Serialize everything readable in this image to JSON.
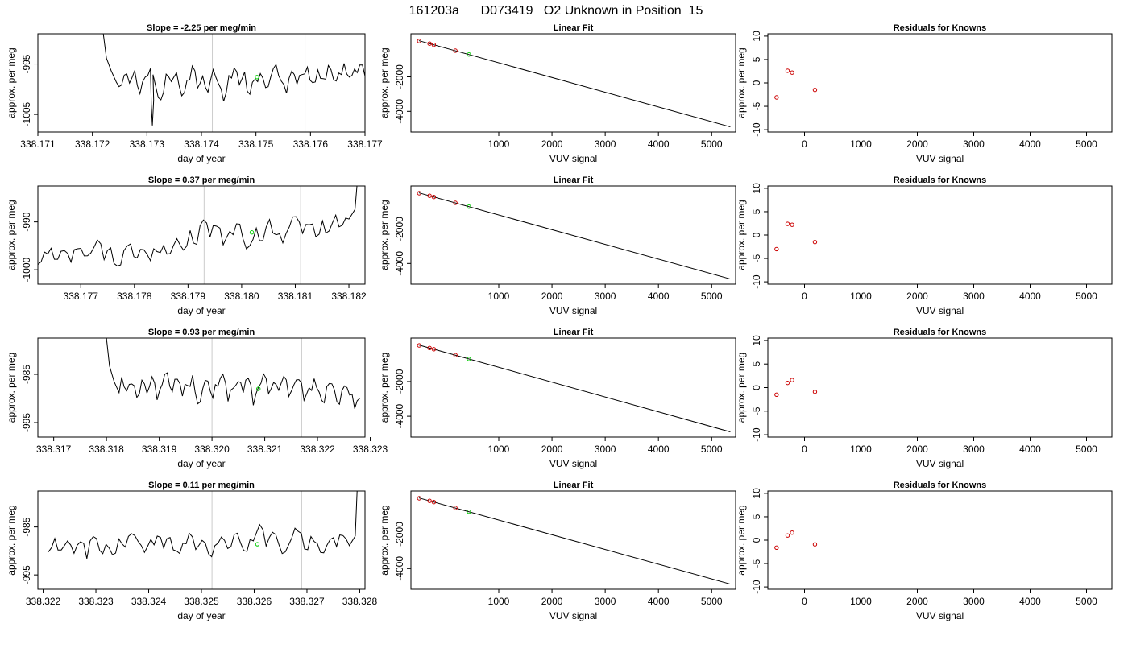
{
  "figure_title": "161203a      D073419   O2 Unknown in Position  15",
  "colors": {
    "trace": "#000000",
    "known_point": "#cc0000",
    "unknown_point": "#00cc00",
    "marker_line": "#cccccc",
    "background": "#ffffff"
  },
  "chart_data": [
    {
      "id": "r1-trace",
      "row": 0,
      "col": 0,
      "type": "line",
      "title": "Slope =  -2.25  per meg/min",
      "xlabel": "day of year",
      "ylabel": "approx. per meg",
      "xlim": [
        338.171,
        338.177
      ],
      "ylim": [
        -1008.5,
        -989
      ],
      "xticks": [
        338.171,
        338.172,
        338.173,
        338.174,
        338.175,
        338.176,
        338.177
      ],
      "xtick_labels": [
        "338.171",
        "338.172",
        "338.173",
        "338.174",
        "338.175",
        "338.176",
        "338.177"
      ],
      "yticks": [
        -995,
        -1005
      ],
      "ytick_labels": [
        "-995",
        "-1005"
      ],
      "vlines": [
        338.1742,
        338.1759
      ],
      "trace": {
        "x_start": 338.1722,
        "x_end": 338.177,
        "start_y": -989,
        "level": -997.8,
        "spike_y": -1007.2,
        "spike_x": 338.1731,
        "samples": [
          -999.5,
          -997.2,
          -998.8,
          -996.3,
          -1000.9,
          -997.6,
          -995.9,
          -999.4,
          -1002.1,
          -997.0,
          -998.5,
          -996.7,
          -1001.3,
          -998.2,
          -995.4,
          -999.8,
          -997.4,
          -1000.6,
          -996.1,
          -998.9,
          -1002.4,
          -997.3,
          -995.8,
          -999.1,
          -996.6,
          -1001.0,
          -998.0,
          -996.9,
          -999.7,
          -997.5,
          -995.1,
          -998.4,
          -1000.8,
          -996.4,
          -999.0,
          -997.1,
          -995.6,
          -998.7,
          -996.2,
          -997.9,
          -995.3,
          -998.1,
          -996.8,
          -994.9,
          -997.6,
          -996.0,
          -995.2,
          -997.4
        ]
      },
      "unknown_point": {
        "x": 338.17502,
        "y": -997.6
      }
    },
    {
      "id": "r1-fit",
      "row": 0,
      "col": 1,
      "type": "scatter",
      "title": "Linear Fit",
      "xlabel": "VUV signal",
      "ylabel": "approx. per meg",
      "xlim": [
        -650,
        5450
      ],
      "ylim": [
        -5200,
        500
      ],
      "xticks": [
        1000,
        2000,
        3000,
        4000,
        5000
      ],
      "xtick_labels": [
        "1000",
        "2000",
        "3000",
        "4000",
        "5000"
      ],
      "yticks": [
        -2000,
        -4000
      ],
      "ytick_labels": [
        "-2000",
        "-4000"
      ],
      "fit_line": {
        "x": [
          -500,
          5350
        ],
        "y": [
          100,
          -4900
        ]
      },
      "knowns": [
        {
          "x": -495,
          "y": 80
        },
        {
          "x": -300,
          "y": -70
        },
        {
          "x": -220,
          "y": -140
        },
        {
          "x": 185,
          "y": -480
        }
      ],
      "unknown": {
        "x": 440,
        "y": -700
      }
    },
    {
      "id": "r1-resid",
      "row": 0,
      "col": 2,
      "type": "scatter",
      "title": "Residuals for Knowns",
      "xlabel": "VUV signal",
      "ylabel": "approx. per meg",
      "xlim": [
        -650,
        5450
      ],
      "ylim": [
        -10.5,
        10.5
      ],
      "xticks": [
        0,
        1000,
        2000,
        3000,
        4000,
        5000
      ],
      "xtick_labels": [
        "0",
        "1000",
        "2000",
        "3000",
        "4000",
        "5000"
      ],
      "yticks": [
        10,
        5,
        0,
        -5,
        -10
      ],
      "ytick_labels": [
        "10",
        "5",
        "0",
        "-5",
        "-10"
      ],
      "points": [
        {
          "x": -495,
          "y": -3.1
        },
        {
          "x": -300,
          "y": 2.6
        },
        {
          "x": -220,
          "y": 2.2
        },
        {
          "x": 185,
          "y": -1.5
        }
      ]
    },
    {
      "id": "r2-trace",
      "row": 1,
      "col": 0,
      "type": "line",
      "title": "Slope =  0.37  per meg/min",
      "xlabel": "day of year",
      "ylabel": "approx. per meg",
      "xlim": [
        338.1762,
        338.1823
      ],
      "ylim": [
        -1003,
        -982.5
      ],
      "xticks": [
        338.177,
        338.178,
        338.179,
        338.18,
        338.181,
        338.182
      ],
      "xtick_labels": [
        "338.177",
        "338.178",
        "338.179",
        "338.180",
        "338.181",
        "338.182"
      ],
      "yticks": [
        -990,
        -1000
      ],
      "ytick_labels": [
        "-990",
        "-1000"
      ],
      "vlines": [
        338.1793,
        338.1811
      ],
      "trace": {
        "x_start": 338.1762,
        "x_end": 338.18215,
        "level_start": -997.2,
        "level_end": -991.5,
        "end_y": -982.5,
        "samples": [
          -998.9,
          -996.3,
          -995.5,
          -997.8,
          -996.0,
          -998.4,
          -995.6,
          -997.1,
          -996.5,
          -993.8,
          -997.9,
          -995.4,
          -999.2,
          -996.0,
          -994.6,
          -997.5,
          -995.8,
          -998.1,
          -996.2,
          -994.9,
          -996.6,
          -993.5,
          -995.9,
          -991.8,
          -994.7,
          -989.6,
          -993.2,
          -990.9,
          -994.8,
          -992.0,
          -990.4,
          -993.6,
          -995.0,
          -991.3,
          -993.9,
          -989.5,
          -992.7,
          -994.4,
          -991.0,
          -988.9,
          -992.4,
          -990.6,
          -993.1,
          -989.8,
          -991.9,
          -988.6,
          -990.7,
          -989.4
        ]
      },
      "unknown_point": {
        "x": 338.18019,
        "y": -992.2
      }
    },
    {
      "id": "r2-fit",
      "row": 1,
      "col": 1,
      "type": "scatter",
      "title": "Linear Fit",
      "xlabel": "VUV signal",
      "ylabel": "approx. per meg",
      "xlim": [
        -650,
        5450
      ],
      "ylim": [
        -5200,
        500
      ],
      "xticks": [
        1000,
        2000,
        3000,
        4000,
        5000
      ],
      "xtick_labels": [
        "1000",
        "2000",
        "3000",
        "4000",
        "5000"
      ],
      "yticks": [
        -2000,
        -4000
      ],
      "ytick_labels": [
        "-2000",
        "-4000"
      ],
      "fit_line": {
        "x": [
          -500,
          5350
        ],
        "y": [
          100,
          -4900
        ]
      },
      "knowns": [
        {
          "x": -495,
          "y": 80
        },
        {
          "x": -300,
          "y": -70
        },
        {
          "x": -220,
          "y": -140
        },
        {
          "x": 185,
          "y": -480
        }
      ],
      "unknown": {
        "x": 440,
        "y": -700
      }
    },
    {
      "id": "r2-resid",
      "row": 1,
      "col": 2,
      "type": "scatter",
      "title": "Residuals for Knowns",
      "xlabel": "VUV signal",
      "ylabel": "approx. per meg",
      "xlim": [
        -650,
        5450
      ],
      "ylim": [
        -10.5,
        10.5
      ],
      "xticks": [
        0,
        1000,
        2000,
        3000,
        4000,
        5000
      ],
      "xtick_labels": [
        "0",
        "1000",
        "2000",
        "3000",
        "4000",
        "5000"
      ],
      "yticks": [
        10,
        5,
        0,
        -5,
        -10
      ],
      "ytick_labels": [
        "10",
        "5",
        "0",
        "-5",
        "-10"
      ],
      "points": [
        {
          "x": -495,
          "y": -3.0
        },
        {
          "x": -300,
          "y": 2.4
        },
        {
          "x": -220,
          "y": 2.2
        },
        {
          "x": 185,
          "y": -1.5
        }
      ]
    },
    {
      "id": "r3-trace",
      "row": 2,
      "col": 0,
      "type": "line",
      "title": "Slope =  0.93  per meg/min",
      "xlabel": "day of year",
      "ylabel": "approx. per meg",
      "xlim": [
        338.3167,
        338.3229
      ],
      "ylim": [
        -998,
        -977.5
      ],
      "xticks": [
        338.317,
        338.318,
        338.319,
        338.32,
        338.321,
        338.322,
        338.323
      ],
      "xtick_labels": [
        "338.317",
        "338.318",
        "338.319",
        "338.320",
        "338.321",
        "338.322",
        "338.323"
      ],
      "yticks": [
        -985,
        -995
      ],
      "ytick_labels": [
        "-985",
        "-995"
      ],
      "vlines": [
        338.32,
        338.3217
      ],
      "trace": {
        "x_start": 338.318,
        "x_end": 338.3228,
        "start_y": -977.5,
        "level": -988.0,
        "samples": [
          -985.6,
          -988.4,
          -987.0,
          -989.8,
          -986.2,
          -988.9,
          -985.5,
          -990.3,
          -987.1,
          -984.7,
          -988.6,
          -986.0,
          -989.5,
          -987.3,
          -985.2,
          -991.1,
          -988.0,
          -986.4,
          -989.9,
          -987.5,
          -985.0,
          -990.6,
          -987.9,
          -986.5,
          -988.8,
          -985.8,
          -991.4,
          -987.7,
          -984.9,
          -989.0,
          -986.7,
          -988.3,
          -985.4,
          -989.6,
          -987.2,
          -986.1,
          -990.4,
          -987.8,
          -985.9,
          -988.7,
          -990.9,
          -986.9,
          -988.2,
          -991.2,
          -987.4,
          -989.3,
          -992.1,
          -990.0
        ]
      },
      "unknown_point": {
        "x": 338.32088,
        "y": -988.0
      }
    },
    {
      "id": "r3-fit",
      "row": 2,
      "col": 1,
      "type": "scatter",
      "title": "Linear Fit",
      "xlabel": "VUV signal",
      "ylabel": "approx. per meg",
      "xlim": [
        -650,
        5450
      ],
      "ylim": [
        -5200,
        500
      ],
      "xticks": [
        1000,
        2000,
        3000,
        4000,
        5000
      ],
      "xtick_labels": [
        "1000",
        "2000",
        "3000",
        "4000",
        "5000"
      ],
      "yticks": [
        -2000,
        -4000
      ],
      "ytick_labels": [
        "-2000",
        "-4000"
      ],
      "fit_line": {
        "x": [
          -500,
          5350
        ],
        "y": [
          100,
          -4900
        ]
      },
      "knowns": [
        {
          "x": -495,
          "y": 80
        },
        {
          "x": -300,
          "y": -70
        },
        {
          "x": -220,
          "y": -140
        },
        {
          "x": 185,
          "y": -480
        }
      ],
      "unknown": {
        "x": 440,
        "y": -700
      }
    },
    {
      "id": "r3-resid",
      "row": 2,
      "col": 2,
      "type": "scatter",
      "title": "Residuals for Knowns",
      "xlabel": "VUV signal",
      "ylabel": "approx. per meg",
      "xlim": [
        -650,
        5450
      ],
      "ylim": [
        -10.5,
        10.5
      ],
      "xticks": [
        0,
        1000,
        2000,
        3000,
        4000,
        5000
      ],
      "xtick_labels": [
        "0",
        "1000",
        "2000",
        "3000",
        "4000",
        "5000"
      ],
      "yticks": [
        10,
        5,
        0,
        -5,
        -10
      ],
      "ytick_labels": [
        "10",
        "5",
        "0",
        "-5",
        "-10"
      ],
      "points": [
        {
          "x": -495,
          "y": -1.5
        },
        {
          "x": -300,
          "y": 1.0
        },
        {
          "x": -220,
          "y": 1.6
        },
        {
          "x": 185,
          "y": -0.9
        }
      ]
    },
    {
      "id": "r4-trace",
      "row": 3,
      "col": 0,
      "type": "line",
      "title": "Slope =  0.11  per meg/min",
      "xlabel": "day of year",
      "ylabel": "approx. per meg",
      "xlim": [
        338.3219,
        338.3281
      ],
      "ylim": [
        -998,
        -977.5
      ],
      "xticks": [
        338.322,
        338.323,
        338.324,
        338.325,
        338.326,
        338.327,
        338.328
      ],
      "xtick_labels": [
        "338.322",
        "338.323",
        "338.324",
        "338.325",
        "338.326",
        "338.327",
        "338.328"
      ],
      "yticks": [
        -985,
        -995
      ],
      "ytick_labels": [
        "-985",
        "-995"
      ],
      "vlines": [
        338.3252,
        338.3269
      ],
      "trace": {
        "x_start": 338.3221,
        "x_end": 338.32795,
        "level_start": -989.5,
        "level_end": -988.6,
        "end_y": -977.5,
        "samples": [
          -990.2,
          -987.4,
          -989.8,
          -987.9,
          -990.5,
          -988.1,
          -991.6,
          -987.0,
          -989.9,
          -988.6,
          -990.8,
          -987.5,
          -989.2,
          -986.4,
          -988.0,
          -990.3,
          -987.6,
          -986.9,
          -989.4,
          -987.2,
          -990.0,
          -988.4,
          -986.3,
          -989.7,
          -987.8,
          -990.6,
          -988.9,
          -987.1,
          -989.5,
          -986.6,
          -988.3,
          -990.1,
          -987.9,
          -984.5,
          -989.0,
          -986.1,
          -988.7,
          -990.2,
          -987.3,
          -985.9,
          -989.6,
          -987.0,
          -988.5,
          -990.4,
          -987.6,
          -989.1,
          -986.8,
          -988.9
        ]
      },
      "unknown_point": {
        "x": 338.32606,
        "y": -988.6
      }
    },
    {
      "id": "r4-fit",
      "row": 3,
      "col": 1,
      "type": "scatter",
      "title": "Linear Fit",
      "xlabel": "VUV signal",
      "ylabel": "approx. per meg",
      "xlim": [
        -650,
        5450
      ],
      "ylim": [
        -5200,
        500
      ],
      "xticks": [
        1000,
        2000,
        3000,
        4000,
        5000
      ],
      "xtick_labels": [
        "1000",
        "2000",
        "3000",
        "4000",
        "5000"
      ],
      "yticks": [
        -2000,
        -4000
      ],
      "ytick_labels": [
        "-2000",
        "-4000"
      ],
      "fit_line": {
        "x": [
          -500,
          5350
        ],
        "y": [
          100,
          -4900
        ]
      },
      "knowns": [
        {
          "x": -495,
          "y": 80
        },
        {
          "x": -300,
          "y": -70
        },
        {
          "x": -220,
          "y": -140
        },
        {
          "x": 185,
          "y": -480
        }
      ],
      "unknown": {
        "x": 440,
        "y": -700
      }
    },
    {
      "id": "r4-resid",
      "row": 3,
      "col": 2,
      "type": "scatter",
      "title": "Residuals for Knowns",
      "xlabel": "VUV signal",
      "ylabel": "approx. per meg",
      "xlim": [
        -650,
        5450
      ],
      "ylim": [
        -10.5,
        10.5
      ],
      "xticks": [
        0,
        1000,
        2000,
        3000,
        4000,
        5000
      ],
      "xtick_labels": [
        "0",
        "1000",
        "2000",
        "3000",
        "4000",
        "5000"
      ],
      "yticks": [
        10,
        5,
        0,
        -5,
        -10
      ],
      "ytick_labels": [
        "10",
        "5",
        "0",
        "-5",
        "-10"
      ],
      "points": [
        {
          "x": -495,
          "y": -1.6
        },
        {
          "x": -300,
          "y": 1.0
        },
        {
          "x": -220,
          "y": 1.6
        },
        {
          "x": 185,
          "y": -0.9
        }
      ]
    }
  ]
}
